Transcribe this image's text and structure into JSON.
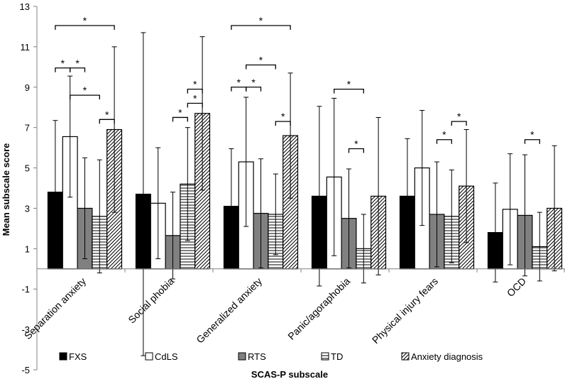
{
  "chart_data": {
    "type": "bar",
    "xlabel": "SCAS-P subscale",
    "ylabel": "Mean subscale score",
    "ylim": [
      -5,
      13
    ],
    "yticks": [
      -5,
      -3,
      -1,
      1,
      3,
      5,
      7,
      9,
      11,
      13
    ],
    "categories": [
      "Separation anxiety",
      "Social phobia",
      "Generalized anxiety",
      "Panic/agoraphobia",
      "Physical injury fears",
      "OCD"
    ],
    "series": [
      {
        "name": "FXS",
        "pattern": "solid-black",
        "values": [
          3.8,
          3.7,
          3.1,
          3.6,
          3.6,
          1.8
        ],
        "err": [
          3.55,
          8.0,
          2.85,
          4.45,
          2.85,
          2.45
        ]
      },
      {
        "name": "CdLS",
        "pattern": "white",
        "values": [
          6.55,
          3.25,
          5.3,
          4.55,
          5.0,
          2.95
        ],
        "err": [
          3.0,
          2.75,
          3.2,
          3.9,
          2.85,
          2.75
        ]
      },
      {
        "name": "RTS",
        "pattern": "solid-gray",
        "values": [
          3.0,
          1.65,
          2.75,
          2.5,
          2.7,
          2.65
        ],
        "err": [
          2.5,
          2.15,
          2.7,
          2.45,
          2.6,
          3.0
        ]
      },
      {
        "name": "TD",
        "pattern": "horizontal-lines",
        "values": [
          2.6,
          4.2,
          2.7,
          1.0,
          2.6,
          1.1
        ],
        "err": [
          2.8,
          2.8,
          2.0,
          1.7,
          2.3,
          1.7
        ]
      },
      {
        "name": "Anxiety diagnosis",
        "pattern": "diagonal-lines",
        "values": [
          6.9,
          7.7,
          6.6,
          3.6,
          4.1,
          3.0
        ],
        "err": [
          4.1,
          3.8,
          3.1,
          3.9,
          2.8,
          3.1
        ]
      }
    ],
    "significance": [
      {
        "category": 0,
        "from": 0,
        "to": 4,
        "y": 12.05,
        "label": "*"
      },
      {
        "category": 0,
        "from": 0,
        "to": 1,
        "y": 9.95,
        "label": "*"
      },
      {
        "category": 0,
        "from": 1,
        "to": 2,
        "y": 9.95,
        "label": "*"
      },
      {
        "category": 0,
        "from": 1,
        "to": 3,
        "y": 8.6,
        "label": "*"
      },
      {
        "category": 0,
        "from": 3,
        "to": 4,
        "y": 7.4,
        "label": "*"
      },
      {
        "category": 1,
        "from": 3,
        "to": 4,
        "y": 8.9,
        "label": "*"
      },
      {
        "category": 1,
        "from": 3,
        "to": 4,
        "y": 8.2,
        "label": "*"
      },
      {
        "category": 1,
        "from": 2,
        "to": 3,
        "y": 7.5,
        "label": "*"
      },
      {
        "category": 2,
        "from": 0,
        "to": 4,
        "y": 12.05,
        "label": "*"
      },
      {
        "category": 2,
        "from": 1,
        "to": 3,
        "y": 10.1,
        "label": "*"
      },
      {
        "category": 2,
        "from": 0,
        "to": 1,
        "y": 9.0,
        "label": "*"
      },
      {
        "category": 2,
        "from": 1,
        "to": 2,
        "y": 9.0,
        "label": "*"
      },
      {
        "category": 2,
        "from": 3,
        "to": 4,
        "y": 7.3,
        "label": "*"
      },
      {
        "category": 3,
        "from": 1,
        "to": 3,
        "y": 8.9,
        "label": "*"
      },
      {
        "category": 3,
        "from": 2,
        "to": 3,
        "y": 5.95,
        "label": "*"
      },
      {
        "category": 4,
        "from": 2,
        "to": 3,
        "y": 6.4,
        "label": "*"
      },
      {
        "category": 4,
        "from": 3,
        "to": 4,
        "y": 7.3,
        "label": "*"
      },
      {
        "category": 5,
        "from": 2,
        "to": 3,
        "y": 6.4,
        "label": "*"
      }
    ],
    "legend_position": "bottom"
  }
}
